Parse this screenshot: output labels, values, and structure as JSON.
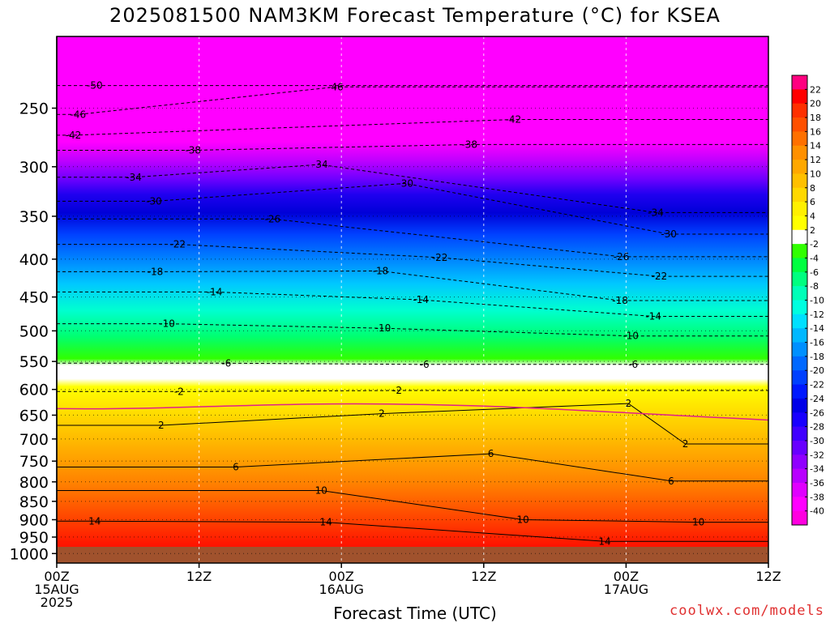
{
  "chart_data": {
    "type": "heatmap",
    "title": "2025081500 NAM3KM Forecast Temperature (°C) for KSEA",
    "xlabel": "Forecast Time (UTC)",
    "ylabel": "",
    "x_ticks": [
      {
        "label": "00Z",
        "date": "15AUG",
        "year": "2025",
        "hour": 0
      },
      {
        "label": "12Z",
        "date": "",
        "year": "",
        "hour": 12
      },
      {
        "label": "00Z",
        "date": "16AUG",
        "year": "",
        "hour": 24
      },
      {
        "label": "12Z",
        "date": "",
        "year": "",
        "hour": 36
      },
      {
        "label": "00Z",
        "date": "17AUG",
        "year": "",
        "hour": 48
      },
      {
        "label": "12Z",
        "date": "",
        "year": "",
        "hour": 60
      }
    ],
    "xlim": [
      0,
      60
    ],
    "y_ticks": [
      250,
      300,
      350,
      400,
      450,
      500,
      550,
      600,
      650,
      700,
      750,
      800,
      850,
      900,
      950,
      1000
    ],
    "ylim": [
      1030,
      200
    ],
    "y_scale": "log",
    "colorbar": {
      "labels": [
        22,
        20,
        18,
        16,
        14,
        12,
        10,
        8,
        6,
        4,
        2,
        -2,
        -4,
        -6,
        -8,
        -10,
        -12,
        -14,
        -16,
        -18,
        -20,
        -22,
        -24,
        -26,
        -28,
        -30,
        -32,
        -34,
        -36,
        -38,
        -40
      ],
      "colors": [
        "#ff0080",
        "#ff0000",
        "#ff3000",
        "#ff5000",
        "#ff7000",
        "#ff9000",
        "#ffa800",
        "#ffc000",
        "#ffd800",
        "#fff000",
        "#ffff00",
        "#ffffff",
        "#30ff00",
        "#00ff40",
        "#00ff80",
        "#00ffb8",
        "#00ffe0",
        "#00e0ff",
        "#00b8ff",
        "#0090ff",
        "#0068ff",
        "#0040ff",
        "#0018ff",
        "#0000e8",
        "#1800ff",
        "#4000ff",
        "#6800ff",
        "#9000ff",
        "#b800ff",
        "#e000ff",
        "#ff00ff",
        "#ff00e0"
      ]
    },
    "series": [
      {
        "values": [
          [
            0,
            935,
            16
          ],
          [
            0,
            990,
            22
          ],
          [
            12,
            990,
            20
          ],
          [
            24,
            990,
            22
          ],
          [
            36,
            990,
            20
          ],
          [
            48,
            990,
            21
          ],
          [
            60,
            990,
            18
          ]
        ]
      }
    ],
    "contour_labels": [
      {
        "value": "-50",
        "x": 3.2,
        "p": 233
      },
      {
        "value": "-46",
        "x": 23.5,
        "p": 234
      },
      {
        "value": "-46",
        "x": 1.8,
        "p": 255
      },
      {
        "value": "-42",
        "x": 1.4,
        "p": 272
      },
      {
        "value": "-42",
        "x": 38.5,
        "p": 259
      },
      {
        "value": "-38",
        "x": 11.5,
        "p": 285
      },
      {
        "value": "-38",
        "x": 34.8,
        "p": 280
      },
      {
        "value": "-34",
        "x": 6.5,
        "p": 310
      },
      {
        "value": "-34",
        "x": 22.2,
        "p": 298
      },
      {
        "value": "-34",
        "x": 50.5,
        "p": 346
      },
      {
        "value": "-30",
        "x": 8.2,
        "p": 334
      },
      {
        "value": "-30",
        "x": 29.4,
        "p": 316
      },
      {
        "value": "-30",
        "x": 51.6,
        "p": 370
      },
      {
        "value": "-26",
        "x": 18.2,
        "p": 353
      },
      {
        "value": "-26",
        "x": 47.6,
        "p": 397
      },
      {
        "value": "-22",
        "x": 10.2,
        "p": 382
      },
      {
        "value": "-22",
        "x": 32.3,
        "p": 398
      },
      {
        "value": "-22",
        "x": 50.8,
        "p": 422
      },
      {
        "value": "-18",
        "x": 8.3,
        "p": 416
      },
      {
        "value": "-18",
        "x": 27.3,
        "p": 415
      },
      {
        "value": "-18",
        "x": 47.5,
        "p": 455
      },
      {
        "value": "-14",
        "x": 13.3,
        "p": 443
      },
      {
        "value": "-14",
        "x": 30.7,
        "p": 454
      },
      {
        "value": "-14",
        "x": 50.3,
        "p": 478
      },
      {
        "value": "-10",
        "x": 9.3,
        "p": 489
      },
      {
        "value": "-10",
        "x": 27.5,
        "p": 496
      },
      {
        "value": "-10",
        "x": 48.4,
        "p": 508
      },
      {
        "value": "-6",
        "x": 14.3,
        "p": 553
      },
      {
        "value": "-6",
        "x": 31.0,
        "p": 555
      },
      {
        "value": "-6",
        "x": 48.6,
        "p": 555
      },
      {
        "value": "-2",
        "x": 10.3,
        "p": 604
      },
      {
        "value": "-2",
        "x": 28.7,
        "p": 602
      },
      {
        "value": "2",
        "x": 8.8,
        "p": 671
      },
      {
        "value": "2",
        "x": 27.4,
        "p": 647
      },
      {
        "value": "2",
        "x": 53.0,
        "p": 711
      },
      {
        "value": "2",
        "x": 48.2,
        "p": 627
      },
      {
        "value": "6",
        "x": 15.1,
        "p": 764
      },
      {
        "value": "6",
        "x": 36.6,
        "p": 733
      },
      {
        "value": "6",
        "x": 51.8,
        "p": 798
      },
      {
        "value": "10",
        "x": 22.3,
        "p": 822
      },
      {
        "value": "10",
        "x": 39.3,
        "p": 900
      },
      {
        "value": "10",
        "x": 54.1,
        "p": 907
      },
      {
        "value": "14",
        "x": 3.2,
        "p": 904
      },
      {
        "value": "14",
        "x": 22.7,
        "p": 907
      },
      {
        "value": "14",
        "x": 46.2,
        "p": 963
      }
    ]
  },
  "watermark": "coolwx.com/models"
}
